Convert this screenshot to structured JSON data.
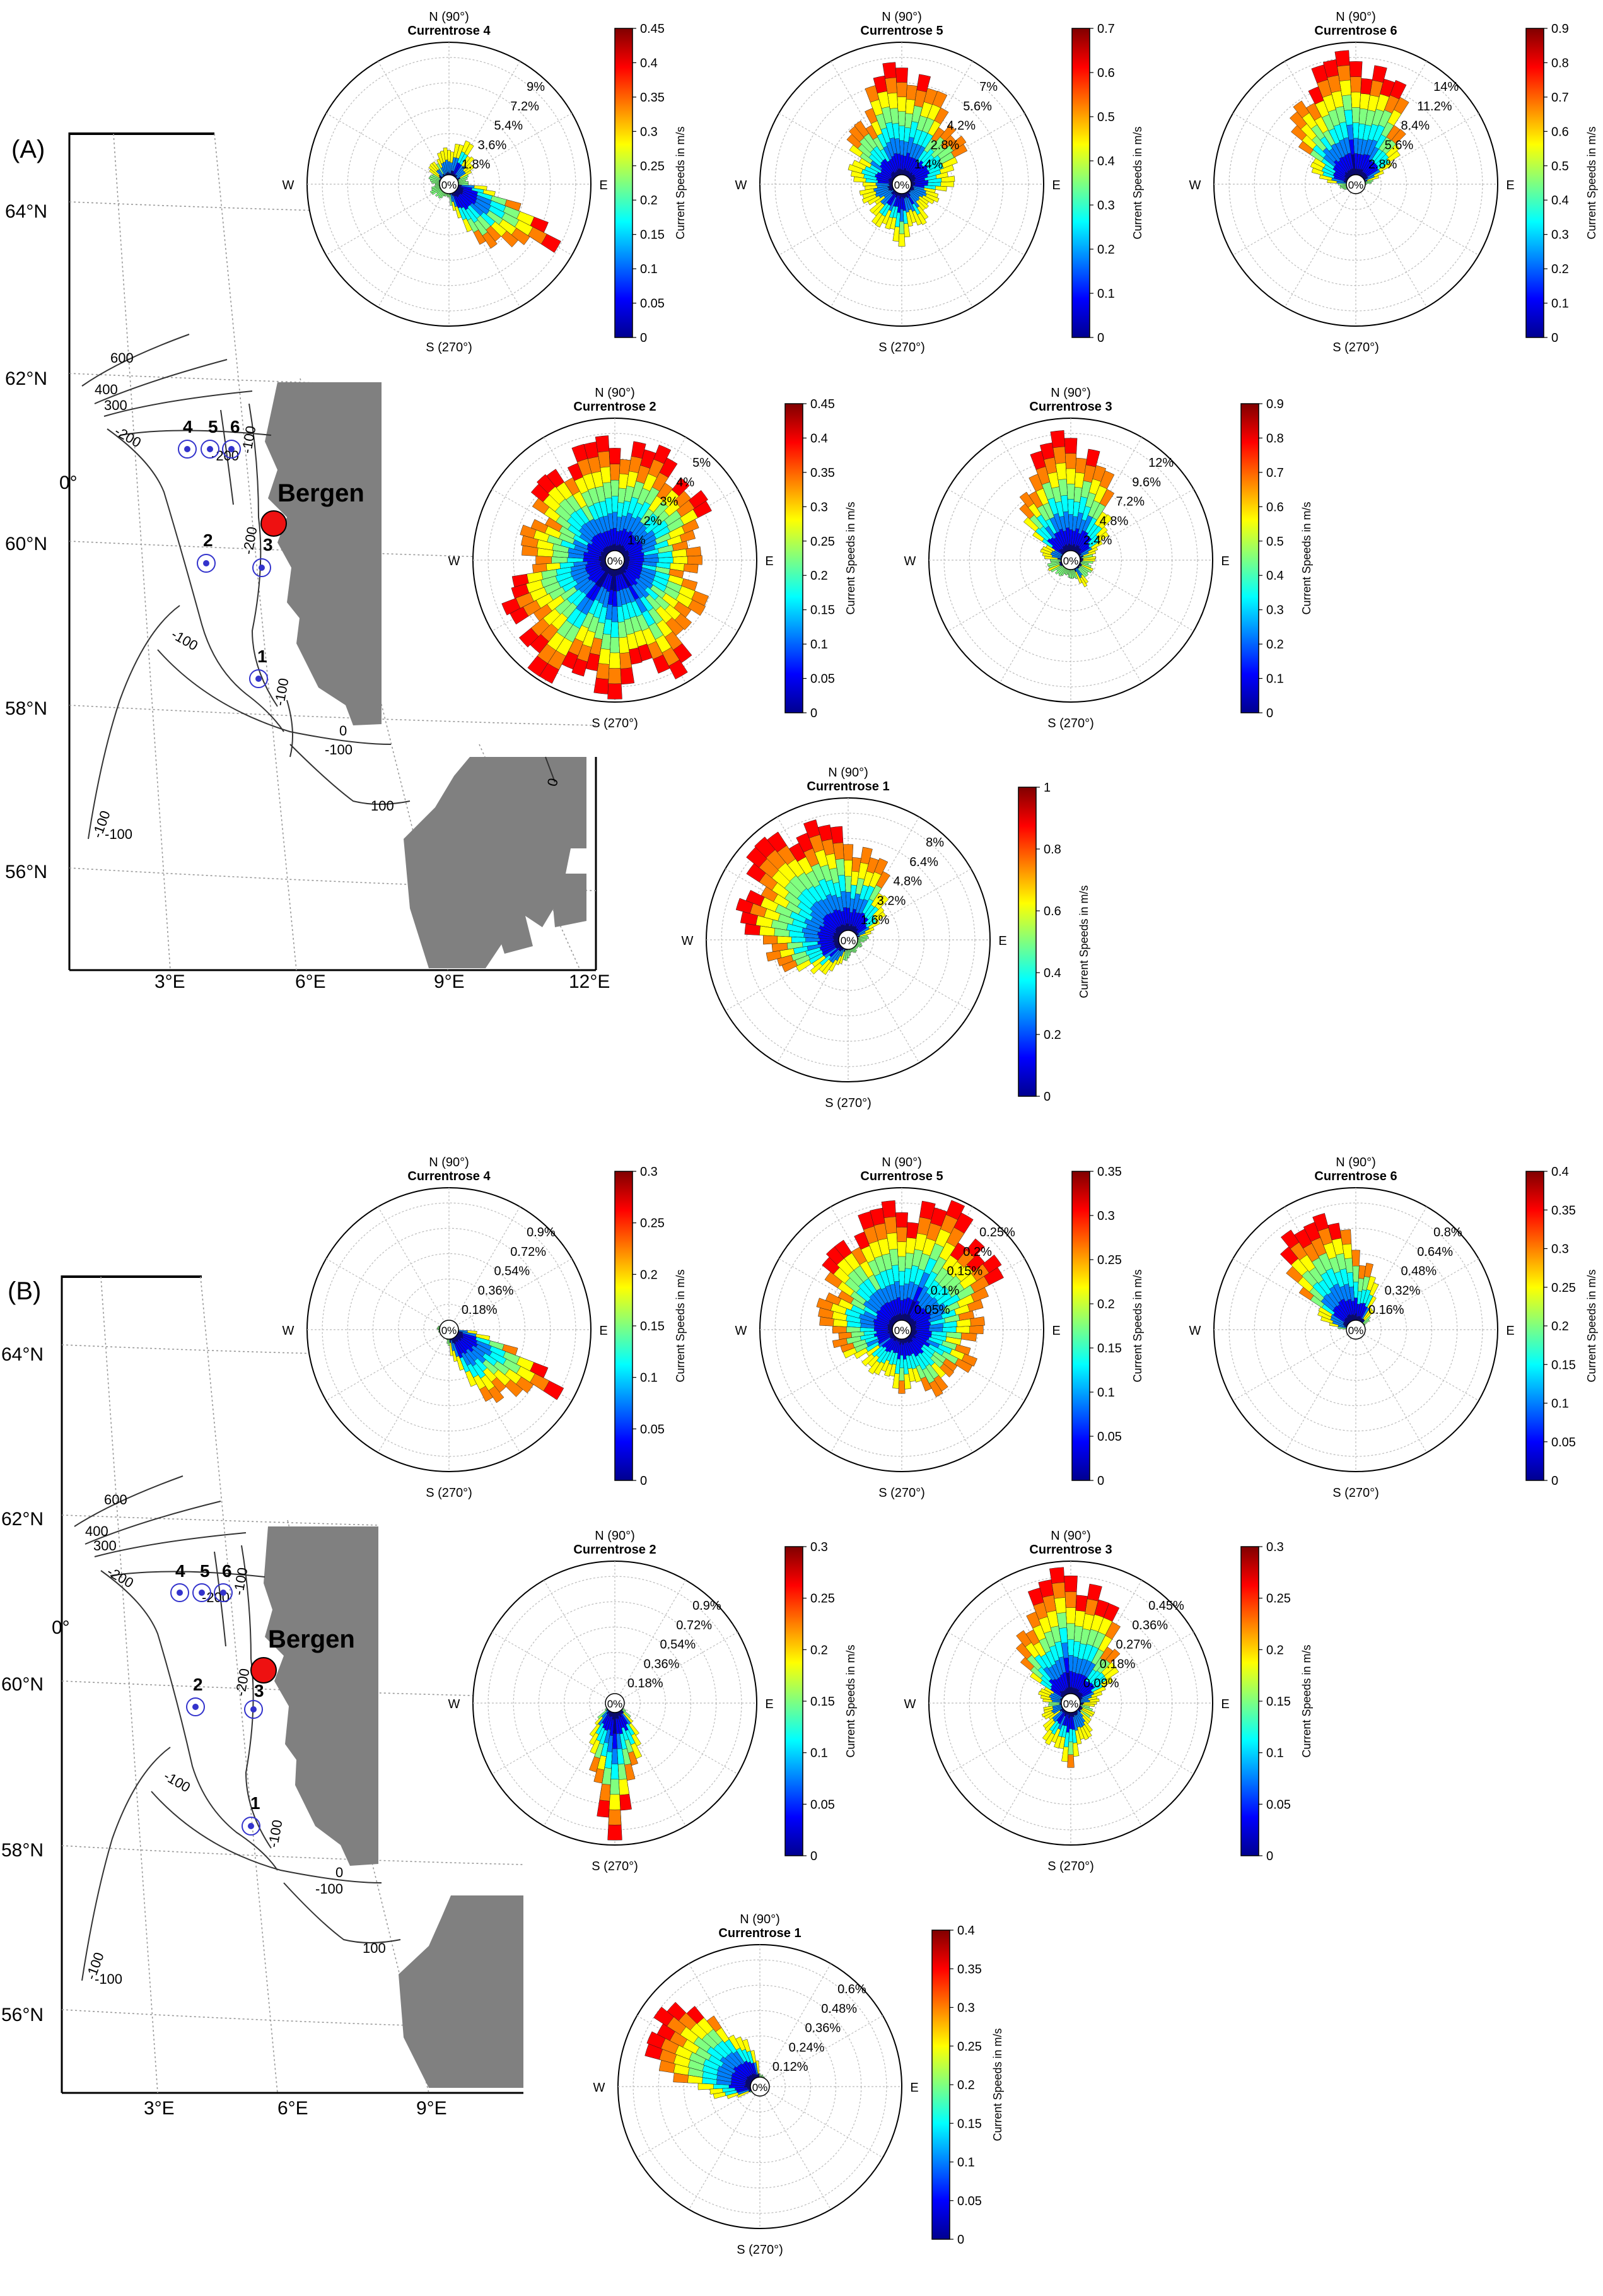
{
  "colormap": [
    "#00008f",
    "#0000ff",
    "#0080ff",
    "#00ffff",
    "#80ff80",
    "#ffff00",
    "#ff8000",
    "#ff0000",
    "#800000"
  ],
  "colors": {
    "land": "#808080",
    "station": "#3333cc",
    "city": "#ee1111",
    "contour": "#333333",
    "grid": "#aaaaaa"
  },
  "dir_labels": {
    "n": "N (90°)",
    "s": "S (270°)",
    "w": "W",
    "e": "E",
    "center": "0%"
  },
  "colorbar_label": "Current Speeds in m/s",
  "panels": [
    {
      "label": "(A)",
      "map": {
        "city": "Bergen",
        "lat_labels": [
          "64°N",
          "62°N",
          "60°N",
          "58°N",
          "56°N"
        ],
        "lon_labels": [
          "3°E",
          "6°E",
          "9°E",
          "12°E"
        ],
        "lon0_label": "0°",
        "stations": [
          "1",
          "2",
          "3",
          "4",
          "5",
          "6"
        ],
        "depth_labels": [
          "600",
          "400",
          "300",
          "-200",
          "-100",
          "-200",
          "-200",
          "-100",
          "-100",
          "-100",
          "0",
          "-100",
          "100",
          "-100",
          "0"
        ]
      },
      "charts": [
        {
          "id": "A4",
          "title": "Currentrose 4",
          "ticks": [
            "1.8%",
            "3.6%",
            "5.4%",
            "7.2%",
            "9%"
          ],
          "cb_ticks": [
            "0",
            "0.05",
            "0.1",
            "0.15",
            "0.2",
            "0.25",
            "0.3",
            "0.35",
            "0.4",
            "0.45"
          ]
        },
        {
          "id": "A5",
          "title": "Currentrose 5",
          "ticks": [
            "1.4%",
            "2.8%",
            "4.2%",
            "5.6%",
            "7%"
          ],
          "cb_ticks": [
            "0",
            "0.1",
            "0.2",
            "0.3",
            "0.4",
            "0.5",
            "0.6",
            "0.7"
          ]
        },
        {
          "id": "A6",
          "title": "Currentrose 6",
          "ticks": [
            "2.8%",
            "5.6%",
            "8.4%",
            "11.2%",
            "14%"
          ],
          "cb_ticks": [
            "0",
            "0.1",
            "0.2",
            "0.3",
            "0.4",
            "0.5",
            "0.6",
            "0.7",
            "0.8",
            "0.9"
          ]
        },
        {
          "id": "A2",
          "title": "Currentrose 2",
          "ticks": [
            "1%",
            "2%",
            "3%",
            "4%",
            "5%"
          ],
          "cb_ticks": [
            "0",
            "0.05",
            "0.1",
            "0.15",
            "0.2",
            "0.25",
            "0.3",
            "0.35",
            "0.4",
            "0.45"
          ]
        },
        {
          "id": "A3",
          "title": "Currentrose 3",
          "ticks": [
            "2.4%",
            "4.8%",
            "7.2%",
            "9.6%",
            "12%"
          ],
          "cb_ticks": [
            "0",
            "0.1",
            "0.2",
            "0.3",
            "0.4",
            "0.5",
            "0.6",
            "0.7",
            "0.8",
            "0.9"
          ]
        },
        {
          "id": "A1",
          "title": "Currentrose 1",
          "ticks": [
            "1.6%",
            "3.2%",
            "4.8%",
            "6.4%",
            "8%"
          ],
          "cb_ticks": [
            "0",
            "0.2",
            "0.4",
            "0.6",
            "0.8",
            "1"
          ]
        }
      ]
    },
    {
      "label": "(B)",
      "map": {
        "city": "Bergen",
        "lat_labels": [
          "64°N",
          "62°N",
          "60°N",
          "58°N",
          "56°N"
        ],
        "lon_labels": [
          "3°E",
          "6°E",
          "9°E"
        ],
        "lon0_label": "0°",
        "stations": [
          "1",
          "2",
          "3",
          "4",
          "5",
          "6"
        ],
        "depth_labels": [
          "600",
          "400",
          "300",
          "-200",
          "-100",
          "-200",
          "-200",
          "-100",
          "-100",
          "-100",
          "0",
          "-100",
          "100",
          "-100"
        ]
      },
      "charts": [
        {
          "id": "B4",
          "title": "Currentrose 4",
          "ticks": [
            "0.18%",
            "0.36%",
            "0.54%",
            "0.72%",
            "0.9%"
          ],
          "cb_ticks": [
            "0",
            "0.05",
            "0.1",
            "0.15",
            "0.2",
            "0.25",
            "0.3"
          ]
        },
        {
          "id": "B5",
          "title": "Currentrose 5",
          "ticks": [
            "0.05%",
            "0.1%",
            "0.15%",
            "0.2%",
            "0.25%"
          ],
          "cb_ticks": [
            "0",
            "0.05",
            "0.1",
            "0.15",
            "0.2",
            "0.25",
            "0.3",
            "0.35"
          ]
        },
        {
          "id": "B6",
          "title": "Currentrose 6",
          "ticks": [
            "0.16%",
            "0.32%",
            "0.48%",
            "0.64%",
            "0.8%"
          ],
          "cb_ticks": [
            "0",
            "0.05",
            "0.1",
            "0.15",
            "0.2",
            "0.25",
            "0.3",
            "0.35",
            "0.4"
          ]
        },
        {
          "id": "B2",
          "title": "Currentrose 2",
          "ticks": [
            "0.18%",
            "0.36%",
            "0.54%",
            "0.72%",
            "0.9%"
          ],
          "cb_ticks": [
            "0",
            "0.05",
            "0.1",
            "0.15",
            "0.2",
            "0.25",
            "0.3"
          ]
        },
        {
          "id": "B3",
          "title": "Currentrose 3",
          "ticks": [
            "0.09%",
            "0.18%",
            "0.27%",
            "0.36%",
            "0.45%"
          ],
          "cb_ticks": [
            "0",
            "0.05",
            "0.1",
            "0.15",
            "0.2",
            "0.25",
            "0.3"
          ]
        },
        {
          "id": "B1",
          "title": "Currentrose 1",
          "ticks": [
            "0.12%",
            "0.24%",
            "0.36%",
            "0.48%",
            "0.6%"
          ],
          "cb_ticks": [
            "0",
            "0.05",
            "0.1",
            "0.15",
            "0.2",
            "0.25",
            "0.3",
            "0.35",
            "0.4"
          ]
        }
      ]
    }
  ],
  "chart_data": [
    {
      "type": "rose",
      "title": "Currentrose 4",
      "panel": "(A)",
      "rmax_percent": 9,
      "colorbar_range": [
        0,
        0.45
      ],
      "directions_deg": [
        0,
        30,
        60,
        90,
        120,
        150,
        180,
        210,
        240,
        270,
        300,
        330
      ],
      "frequency_percent": [
        1.2,
        1.6,
        3.0,
        2.4,
        1.8,
        1.5,
        1.0,
        1.3,
        1.0,
        0.8,
        4.2,
        8.0
      ]
    },
    {
      "type": "rose",
      "title": "Currentrose 5",
      "panel": "(A)",
      "rmax_percent": 7,
      "colorbar_range": [
        0,
        0.7
      ],
      "directions_deg": [
        0,
        30,
        60,
        90,
        120,
        150,
        180,
        210,
        240,
        270,
        300,
        330
      ],
      "frequency_percent": [
        2.5,
        3.6,
        4.4,
        6.4,
        4.0,
        3.0,
        2.2,
        2.0,
        2.4,
        3.0,
        2.2,
        1.8
      ]
    },
    {
      "type": "rose",
      "title": "Currentrose 6",
      "panel": "(A)",
      "rmax_percent": 14,
      "colorbar_range": [
        0,
        0.9
      ],
      "directions_deg": [
        0,
        30,
        60,
        90,
        120,
        150,
        180,
        210,
        240,
        270,
        300,
        330
      ],
      "frequency_percent": [
        1.0,
        4.0,
        10.0,
        13.5,
        11.0,
        6.0,
        2.0,
        1.0,
        0.8,
        0.8,
        0.8,
        0.8
      ]
    },
    {
      "type": "rose",
      "title": "Currentrose 2",
      "panel": "(A)",
      "rmax_percent": 5,
      "colorbar_range": [
        0,
        0.45
      ],
      "directions_deg": [
        0,
        30,
        60,
        90,
        120,
        150,
        180,
        210,
        240,
        270,
        300,
        330
      ],
      "frequency_percent": [
        3.0,
        3.8,
        4.2,
        4.4,
        4.0,
        3.5,
        3.2,
        4.4,
        4.9,
        4.8,
        4.6,
        3.6
      ]
    },
    {
      "type": "rose",
      "title": "Currentrose 3",
      "panel": "(A)",
      "rmax_percent": 12,
      "colorbar_range": [
        0,
        0.9
      ],
      "directions_deg": [
        0,
        30,
        60,
        90,
        120,
        150,
        180,
        210,
        240,
        270,
        300,
        330
      ],
      "frequency_percent": [
        2.0,
        3.0,
        7.0,
        11.5,
        8.0,
        3.0,
        2.0,
        2.0,
        1.5,
        1.5,
        2.5,
        2.0
      ]
    },
    {
      "type": "rose",
      "title": "Currentrose 1",
      "panel": "(A)",
      "rmax_percent": 8,
      "colorbar_range": [
        0,
        1
      ],
      "directions_deg": [
        0,
        30,
        60,
        90,
        120,
        150,
        180,
        210,
        240,
        270,
        300,
        330
      ],
      "frequency_percent": [
        1.0,
        2.0,
        4.5,
        6.0,
        7.5,
        7.0,
        5.5,
        3.5,
        2.0,
        1.0,
        0.8,
        0.8
      ]
    },
    {
      "type": "rose",
      "title": "Currentrose 4",
      "panel": "(B)",
      "rmax_percent": 0.9,
      "colorbar_range": [
        0,
        0.3
      ],
      "directions_deg": [
        0,
        30,
        60,
        90,
        120,
        150,
        180,
        210,
        240,
        270,
        300,
        330
      ],
      "frequency_percent": [
        0.03,
        0.04,
        0.05,
        0.06,
        0.05,
        0.06,
        0.08,
        0.05,
        0.05,
        0.1,
        0.5,
        0.82
      ]
    },
    {
      "type": "rose",
      "title": "Currentrose 5",
      "panel": "(B)",
      "rmax_percent": 0.25,
      "colorbar_range": [
        0,
        0.35
      ],
      "directions_deg": [
        0,
        30,
        60,
        90,
        120,
        150,
        180,
        210,
        240,
        270,
        300,
        330
      ],
      "frequency_percent": [
        0.14,
        0.2,
        0.24,
        0.23,
        0.2,
        0.16,
        0.14,
        0.1,
        0.09,
        0.11,
        0.13,
        0.14
      ]
    },
    {
      "type": "rose",
      "title": "Currentrose 6",
      "panel": "(B)",
      "rmax_percent": 0.8,
      "colorbar_range": [
        0,
        0.4
      ],
      "directions_deg": [
        0,
        30,
        60,
        90,
        120,
        150,
        180,
        210,
        240,
        270,
        300,
        330
      ],
      "frequency_percent": [
        0.03,
        0.06,
        0.22,
        0.5,
        0.78,
        0.3,
        0.05,
        0.03,
        0.03,
        0.03,
        0.03,
        0.03
      ]
    },
    {
      "type": "rose",
      "title": "Currentrose 2",
      "panel": "(B)",
      "rmax_percent": 0.9,
      "colorbar_range": [
        0,
        0.3
      ],
      "directions_deg": [
        0,
        30,
        60,
        90,
        120,
        150,
        180,
        210,
        240,
        270,
        300,
        330
      ],
      "frequency_percent": [
        0.02,
        0.03,
        0.04,
        0.04,
        0.03,
        0.03,
        0.03,
        0.05,
        0.3,
        0.85,
        0.3,
        0.05
      ]
    },
    {
      "type": "rose",
      "title": "Currentrose 3",
      "panel": "(B)",
      "rmax_percent": 0.45,
      "colorbar_range": [
        0,
        0.3
      ],
      "directions_deg": [
        0,
        30,
        60,
        90,
        120,
        150,
        180,
        210,
        240,
        270,
        300,
        330
      ],
      "frequency_percent": [
        0.08,
        0.15,
        0.3,
        0.45,
        0.32,
        0.12,
        0.08,
        0.1,
        0.15,
        0.2,
        0.12,
        0.08
      ]
    },
    {
      "type": "rose",
      "title": "Currentrose 1",
      "panel": "(B)",
      "rmax_percent": 0.6,
      "colorbar_range": [
        0,
        0.4
      ],
      "directions_deg": [
        0,
        30,
        60,
        90,
        120,
        150,
        180,
        210,
        240,
        270,
        300,
        330
      ],
      "frequency_percent": [
        0.02,
        0.02,
        0.04,
        0.06,
        0.3,
        0.62,
        0.3,
        0.05,
        0.03,
        0.02,
        0.02,
        0.02
      ]
    }
  ]
}
